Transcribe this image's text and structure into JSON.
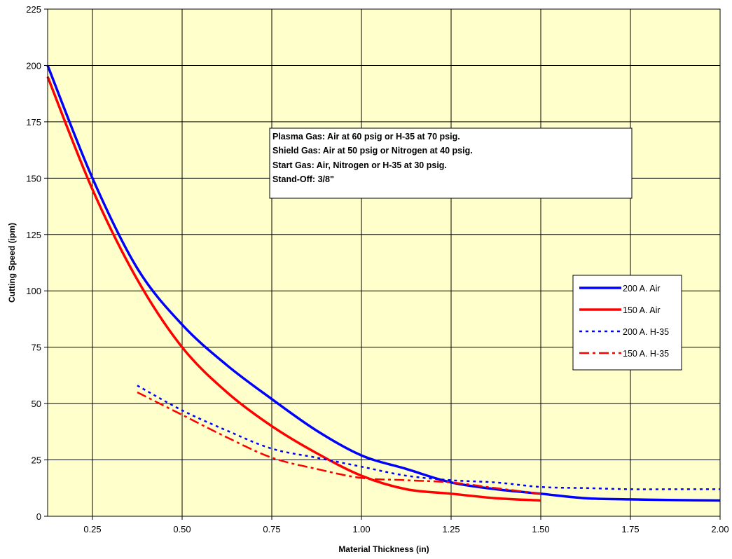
{
  "chart_data": {
    "type": "line",
    "xlabel": "Material Thickness (in)",
    "ylabel": "Cutting Speed (ipm)",
    "xlim": [
      0.125,
      2.0
    ],
    "ylim": [
      0,
      225
    ],
    "x_ticks": [
      "0.25",
      "0.50",
      "0.75",
      "1.00",
      "1.25",
      "1.50",
      "1.75",
      "2.00"
    ],
    "y_ticks": [
      "0",
      "25",
      "50",
      "75",
      "100",
      "125",
      "150",
      "175",
      "200",
      "225"
    ],
    "grid": true,
    "plot_background": "#ffffcc",
    "legend_position": "right",
    "annotation": [
      "Plasma Gas:  Air at 60 psig or H-35 at 70 psig.",
      "Shield Gas:  Air at 50 psig or Nitrogen at 40 psig.",
      "Start Gas:  Air, Nitrogen or H-35 at 30 psig.",
      "Stand-Off:  3/8\""
    ],
    "series": [
      {
        "name": "200 A. Air",
        "color": "#0000ff",
        "dash": "solid",
        "x": [
          0.125,
          0.25,
          0.375,
          0.5,
          0.625,
          0.75,
          0.875,
          1.0,
          1.125,
          1.25,
          1.375,
          1.5,
          1.625,
          1.75,
          1.875,
          2.0
        ],
        "y": [
          200,
          150,
          110,
          85,
          67,
          52,
          38,
          27,
          21,
          15,
          12,
          10,
          8,
          7.5,
          7.2,
          7
        ]
      },
      {
        "name": "150 A. Air",
        "color": "#ff0000",
        "dash": "solid",
        "x": [
          0.125,
          0.25,
          0.375,
          0.5,
          0.625,
          0.75,
          0.875,
          1.0,
          1.125,
          1.25,
          1.375,
          1.5
        ],
        "y": [
          195,
          145,
          105,
          75,
          55,
          40,
          28,
          18,
          12,
          10,
          8,
          7
        ]
      },
      {
        "name": "200 A. H-35",
        "color": "#0000ff",
        "dash": "dotted",
        "x": [
          0.375,
          0.5,
          0.625,
          0.75,
          0.875,
          1.0,
          1.125,
          1.25,
          1.375,
          1.5,
          1.625,
          1.75,
          1.875,
          2.0
        ],
        "y": [
          58,
          47,
          38,
          30,
          26,
          22,
          18,
          16,
          15,
          13,
          12.5,
          12,
          12,
          12
        ]
      },
      {
        "name": "150 A. H-35",
        "color": "#ff0000",
        "dash": "dashdot",
        "x": [
          0.375,
          0.5,
          0.625,
          0.75,
          0.875,
          1.0,
          1.125,
          1.25,
          1.375,
          1.5
        ],
        "y": [
          55,
          45,
          35,
          26,
          21,
          17,
          16,
          15,
          12.5,
          10
        ]
      }
    ]
  }
}
